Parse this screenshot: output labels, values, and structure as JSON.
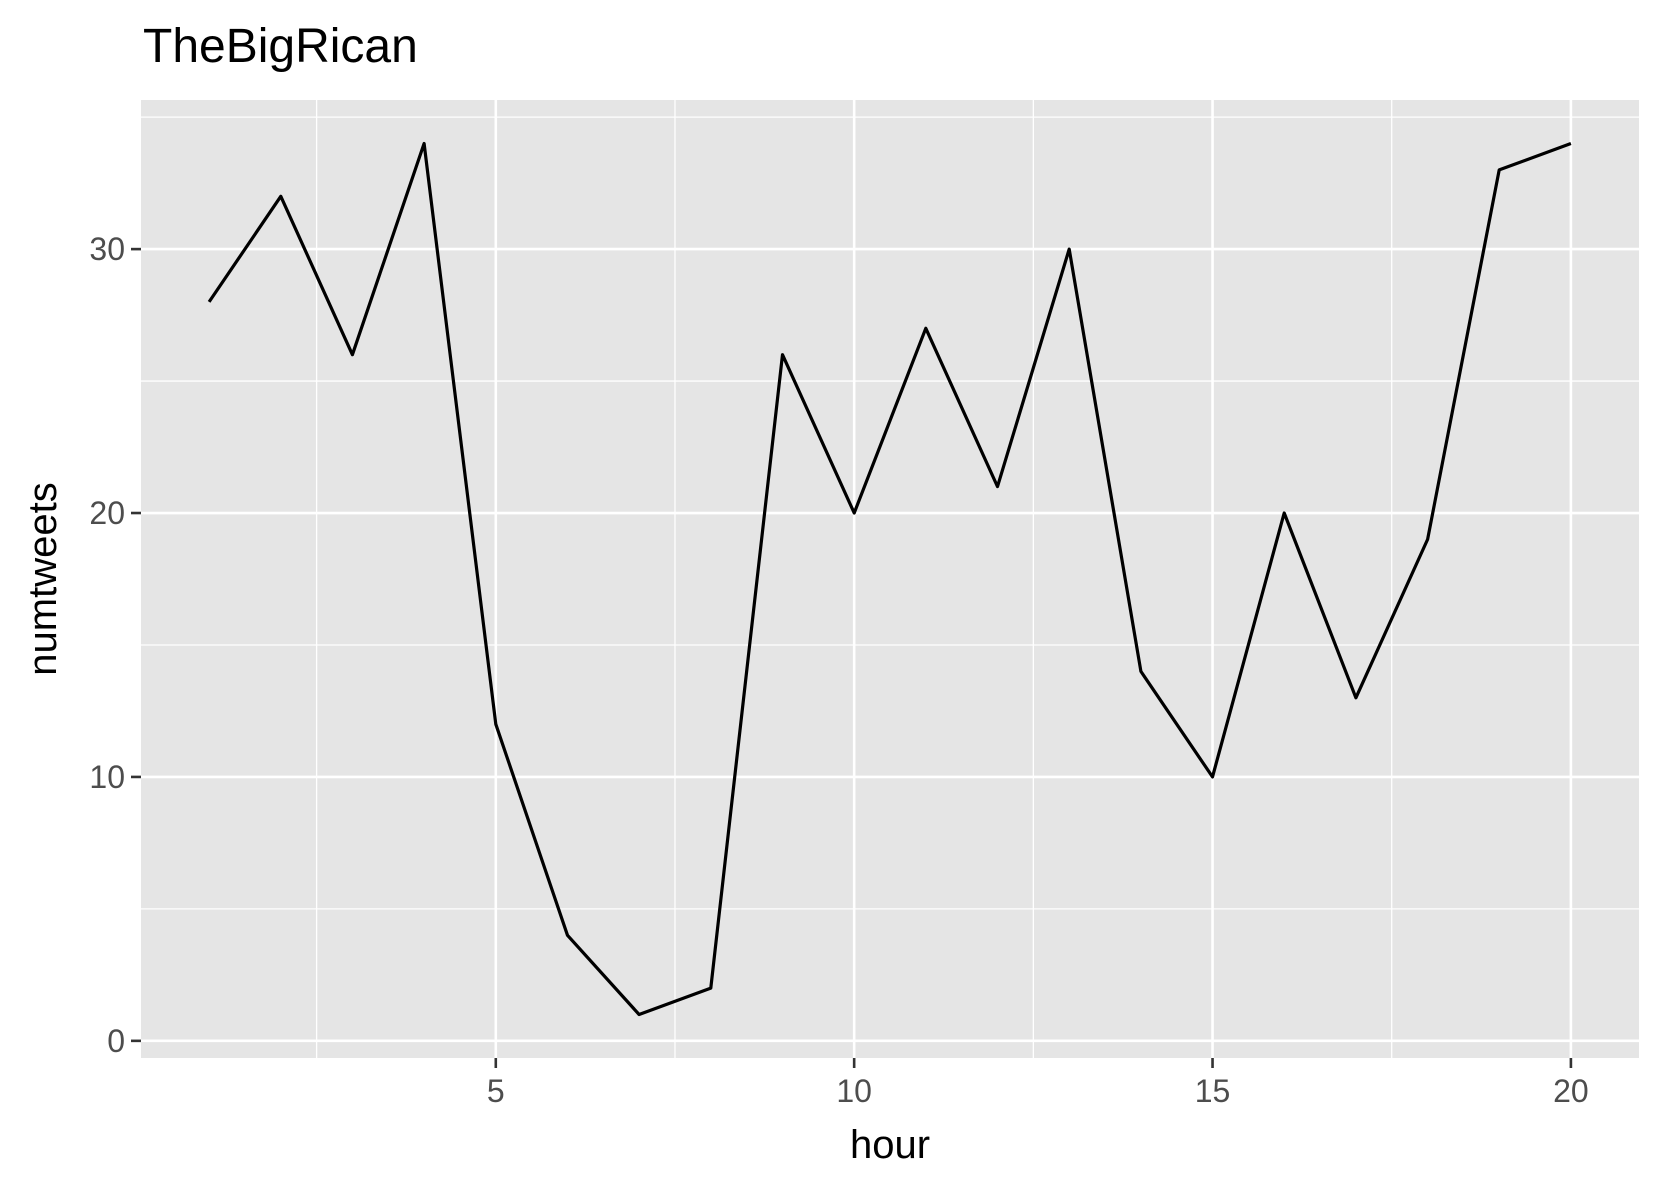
{
  "chart_data": {
    "type": "line",
    "title": "TheBigRican",
    "xlabel": "hour",
    "ylabel": "numtweets",
    "xlim": [
      0.05,
      20.95
    ],
    "ylim": [
      -0.65,
      35.65
    ],
    "x_ticks": [
      5,
      10,
      15,
      20
    ],
    "y_ticks": [
      0,
      10,
      20,
      30
    ],
    "x_minor": [
      2.5,
      7.5,
      12.5,
      17.5
    ],
    "y_minor": [
      5,
      15,
      25,
      35
    ],
    "grid": true,
    "background": "#e5e5e5",
    "line_color": "#000000",
    "series": [
      {
        "x": [
          1,
          2,
          3,
          4,
          5,
          6,
          7,
          8,
          9,
          10,
          11,
          12,
          13,
          14,
          15,
          16,
          17,
          18,
          19,
          20
        ],
        "values": [
          28,
          32,
          26,
          34,
          12,
          4,
          1,
          2,
          26,
          20,
          27,
          21,
          30,
          14,
          10,
          20,
          13,
          19,
          33,
          34
        ]
      }
    ]
  }
}
